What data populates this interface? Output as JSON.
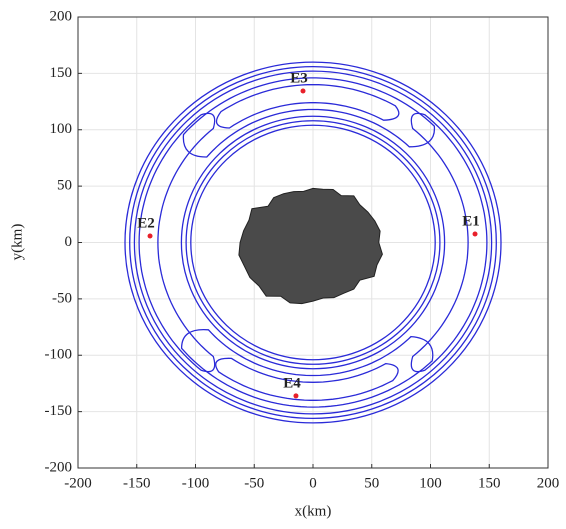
{
  "chart_data": {
    "type": "scatter",
    "xlabel": "x(km)",
    "ylabel": "y(km)",
    "x": [
      137.9,
      -138.7,
      -8.5,
      -14.5
    ],
    "values": [
      7.5,
      5.8,
      134.4,
      -136
    ],
    "point_labels": [
      "E1",
      "E2",
      "E3",
      "E4"
    ],
    "color": "#e8202a",
    "curve_color": "#2a2ad8",
    "xlim": [
      -200,
      200
    ],
    "ylim": [
      -200,
      200
    ],
    "xticks": [
      -200,
      -150,
      -100,
      -50,
      0,
      50,
      100,
      150,
      200
    ],
    "yticks": [
      -200,
      -150,
      -100,
      -50,
      0,
      50,
      100,
      150,
      200
    ],
    "grid": true
  }
}
